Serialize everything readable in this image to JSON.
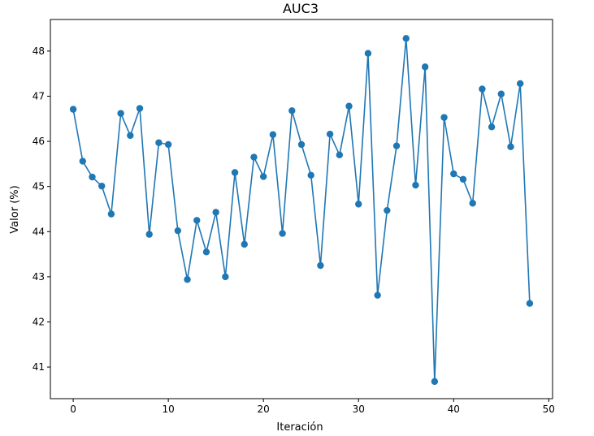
{
  "chart_data": {
    "type": "line",
    "title": "AUC3",
    "xlabel": "Iteración",
    "ylabel": "Valor (%)",
    "xlim": [
      -2.4,
      50.4
    ],
    "ylim": [
      40.3,
      48.7
    ],
    "xticks": [
      0,
      10,
      20,
      30,
      40,
      50
    ],
    "yticks": [
      41,
      42,
      43,
      44,
      45,
      46,
      47,
      48
    ],
    "grid": false,
    "series_color": "#1f77b4",
    "x": [
      0,
      1,
      2,
      3,
      4,
      5,
      6,
      7,
      8,
      9,
      10,
      11,
      12,
      13,
      14,
      15,
      16,
      17,
      18,
      19,
      20,
      21,
      22,
      23,
      24,
      25,
      26,
      27,
      28,
      29,
      30,
      31,
      32,
      33,
      34,
      35,
      36,
      37,
      38,
      39,
      40,
      41,
      42,
      43,
      44,
      45,
      46,
      47,
      48
    ],
    "values": [
      46.71,
      45.56,
      45.21,
      45.01,
      44.39,
      46.62,
      46.13,
      46.73,
      43.94,
      45.97,
      45.93,
      44.02,
      42.94,
      44.25,
      43.55,
      44.43,
      43.0,
      45.31,
      43.72,
      45.65,
      45.22,
      46.15,
      43.96,
      46.68,
      45.93,
      45.25,
      43.25,
      46.16,
      45.7,
      46.78,
      44.61,
      47.95,
      42.59,
      44.47,
      45.9,
      48.28,
      45.03,
      47.65,
      40.68,
      46.53,
      45.28,
      45.16,
      44.63,
      47.16,
      46.32,
      47.05,
      45.88,
      47.28,
      42.41
    ]
  }
}
